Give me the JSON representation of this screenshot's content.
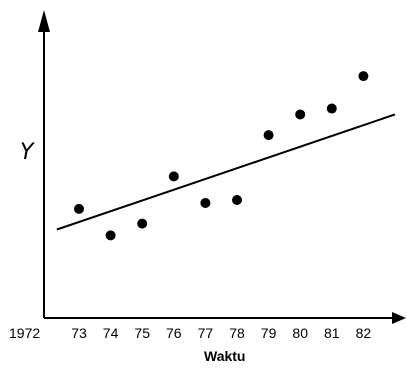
{
  "chart_data": {
    "type": "scatter",
    "title": "",
    "xlabel": "Waktu",
    "ylabel": "Y",
    "origin_label": "1972",
    "x_ticks": [
      "73",
      "74",
      "75",
      "76",
      "77",
      "78",
      "79",
      "80",
      "81",
      "82"
    ],
    "xlim": [
      1972,
      1983
    ],
    "ylim": [
      0,
      100
    ],
    "grid": false,
    "points": [
      {
        "x": 1973,
        "y": 37
      },
      {
        "x": 1974,
        "y": 28
      },
      {
        "x": 1975,
        "y": 32
      },
      {
        "x": 1976,
        "y": 48
      },
      {
        "x": 1977,
        "y": 39
      },
      {
        "x": 1978,
        "y": 40
      },
      {
        "x": 1979,
        "y": 62
      },
      {
        "x": 1980,
        "y": 69
      },
      {
        "x": 1981,
        "y": 71
      },
      {
        "x": 1982,
        "y": 82
      }
    ],
    "trend_line": {
      "x": [
        1972.3,
        1983
      ],
      "y": [
        30,
        69
      ]
    }
  }
}
